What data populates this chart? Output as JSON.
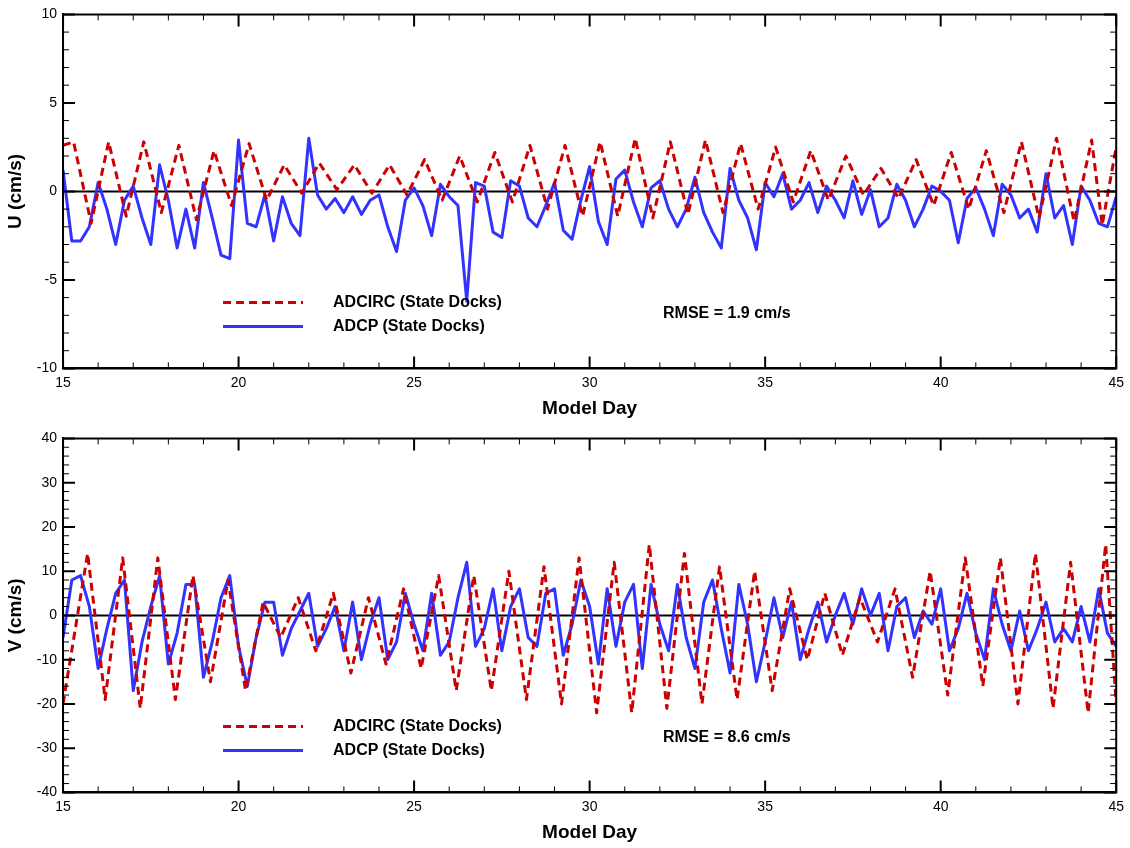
{
  "chart_data": [
    {
      "type": "line",
      "xlabel": "Model Day",
      "ylabel": "U (cm/s)",
      "xlim": [
        15,
        45
      ],
      "ylim": [
        -10,
        10
      ],
      "xticks": [
        15,
        20,
        25,
        30,
        35,
        40,
        45
      ],
      "yticks": [
        -10,
        -5,
        0,
        5,
        10
      ],
      "grid": false,
      "legend": "bottom left",
      "marker": "none",
      "ref_lines": [
        {
          "axis": "y",
          "value": 0,
          "color": "#000000"
        }
      ],
      "annotations": [
        {
          "text": "RMSE = 1.9 cm/s"
        }
      ],
      "series": [
        {
          "name": "ADCIRC (State Docks)",
          "color": "#cc0000",
          "line_style": "dashed",
          "x": [
            15,
            15.3,
            15.8,
            16.3,
            16.8,
            17.3,
            17.8,
            18.3,
            18.8,
            19.3,
            19.8,
            20.3,
            20.8,
            21.3,
            21.8,
            22.3,
            22.8,
            23.3,
            23.8,
            24.3,
            24.8,
            25.3,
            25.8,
            26.3,
            26.8,
            27.3,
            27.8,
            28.3,
            28.8,
            29.3,
            29.8,
            30.3,
            30.8,
            31.3,
            31.8,
            32.3,
            32.8,
            33.3,
            33.8,
            34.3,
            34.8,
            35.3,
            35.8,
            36.3,
            36.8,
            37.3,
            37.8,
            38.3,
            38.8,
            39.3,
            39.8,
            40.3,
            40.8,
            41.3,
            41.8,
            42.3,
            42.8,
            43.3,
            43.8,
            44.3,
            44.6,
            45
          ],
          "values": [
            2.6,
            2.8,
            -1.8,
            2.8,
            -1.4,
            2.8,
            -1.2,
            2.6,
            -1.6,
            2.3,
            -0.8,
            2.7,
            -0.5,
            1.5,
            -0.1,
            1.6,
            0.1,
            1.5,
            -0.1,
            1.5,
            -0.2,
            1.8,
            -0.5,
            2.0,
            -0.6,
            2.2,
            -0.6,
            2.6,
            -1.0,
            2.6,
            -1.4,
            2.8,
            -1.4,
            3.0,
            -1.5,
            2.8,
            -1.3,
            2.9,
            -1.2,
            2.7,
            -1.0,
            2.5,
            -0.6,
            2.3,
            -0.5,
            2.0,
            -0.2,
            1.3,
            -0.4,
            1.8,
            -0.8,
            2.2,
            -1.0,
            2.3,
            -1.2,
            2.8,
            -1.5,
            3.0,
            -1.7,
            2.9,
            -1.9,
            2.5
          ]
        },
        {
          "name": "ADCP (State Docks)",
          "color": "#3333ff",
          "line_style": "solid",
          "x": [
            15,
            15.25,
            15.5,
            15.75,
            16,
            16.25,
            16.5,
            16.75,
            17,
            17.25,
            17.5,
            17.75,
            18,
            18.25,
            18.5,
            18.75,
            19,
            19.25,
            19.5,
            19.75,
            20,
            20.25,
            20.5,
            20.75,
            21,
            21.25,
            21.5,
            21.75,
            22,
            22.25,
            22.5,
            22.75,
            23,
            23.25,
            23.5,
            23.75,
            24,
            24.25,
            24.5,
            24.75,
            25,
            25.25,
            25.5,
            25.75,
            26,
            26.25,
            26.5,
            26.75,
            27,
            27.25,
            27.5,
            27.75,
            28,
            28.25,
            28.5,
            28.75,
            29,
            29.25,
            29.5,
            29.75,
            30,
            30.25,
            30.5,
            30.75,
            31,
            31.25,
            31.5,
            31.75,
            32,
            32.25,
            32.5,
            32.75,
            33,
            33.25,
            33.5,
            33.75,
            34,
            34.25,
            34.5,
            34.75,
            35,
            35.25,
            35.5,
            35.75,
            36,
            36.25,
            36.5,
            36.75,
            37,
            37.25,
            37.5,
            37.75,
            38,
            38.25,
            38.5,
            38.75,
            39,
            39.25,
            39.5,
            39.75,
            40,
            40.25,
            40.5,
            40.75,
            41,
            41.25,
            41.5,
            41.75,
            42,
            42.25,
            42.5,
            42.75,
            43,
            43.25,
            43.5,
            43.75,
            44,
            44.25,
            44.5,
            44.75,
            45
          ],
          "values": [
            1.2,
            -2.8,
            -2.8,
            -2.0,
            0.5,
            -1.0,
            -3.0,
            -0.5,
            0.3,
            -1.5,
            -3.0,
            1.5,
            -0.5,
            -3.2,
            -1.0,
            -3.2,
            0.5,
            -1.5,
            -3.6,
            -3.8,
            2.9,
            -1.8,
            -2.0,
            -0.2,
            -2.8,
            -0.3,
            -1.8,
            -2.5,
            3.0,
            -0.2,
            -1.0,
            -0.4,
            -1.2,
            -0.3,
            -1.3,
            -0.5,
            -0.2,
            -2.0,
            -3.4,
            -0.5,
            0.2,
            -0.8,
            -2.5,
            0.4,
            -0.3,
            -0.8,
            -6.2,
            0.5,
            0.3,
            -2.3,
            -2.6,
            0.6,
            0.3,
            -1.5,
            -2.0,
            -0.8,
            0.5,
            -2.2,
            -2.7,
            -0.5,
            1.4,
            -1.7,
            -3.0,
            0.7,
            1.2,
            -0.6,
            -2.0,
            0.2,
            0.6,
            -1.0,
            -2.0,
            -1.0,
            0.8,
            -1.2,
            -2.3,
            -3.2,
            1.3,
            -0.5,
            -1.5,
            -3.3,
            0.5,
            -0.3,
            1.0,
            -1.0,
            -0.5,
            0.5,
            -1.2,
            0.3,
            -0.5,
            -1.5,
            0.6,
            -1.3,
            0.1,
            -2.0,
            -1.5,
            0.4,
            -0.5,
            -2.0,
            -1.0,
            0.3,
            0.0,
            -0.5,
            -2.9,
            -0.4,
            0.2,
            -1.0,
            -2.5,
            0.4,
            -0.2,
            -1.5,
            -1.0,
            -2.3,
            1.0,
            -1.5,
            -0.8,
            -3.0,
            0.3,
            -0.5,
            -1.8,
            -2.0,
            -0.3
          ]
        }
      ]
    },
    {
      "type": "line",
      "xlabel": "Model Day",
      "ylabel": "V (cm/s)",
      "xlim": [
        15,
        45
      ],
      "ylim": [
        -40,
        40
      ],
      "xticks": [
        15,
        20,
        25,
        30,
        35,
        40,
        45
      ],
      "yticks": [
        -40,
        -30,
        -20,
        -10,
        0,
        10,
        20,
        30,
        40
      ],
      "grid": false,
      "legend": "bottom left",
      "marker": "none",
      "ref_lines": [
        {
          "axis": "y",
          "value": 0,
          "color": "#000000"
        }
      ],
      "annotations": [
        {
          "text": "RMSE = 8.6 cm/s"
        }
      ],
      "series": [
        {
          "name": "ADCIRC (State Docks)",
          "color": "#cc0000",
          "line_style": "dashed",
          "x": [
            15,
            15.7,
            16.2,
            16.7,
            17.2,
            17.7,
            18.2,
            18.7,
            19.2,
            19.7,
            20.2,
            20.7,
            21.2,
            21.7,
            22.2,
            22.7,
            23.2,
            23.7,
            24.2,
            24.7,
            25.2,
            25.7,
            26.2,
            26.7,
            27.2,
            27.7,
            28.2,
            28.7,
            29.2,
            29.7,
            30.2,
            30.7,
            31.2,
            31.7,
            32.2,
            32.7,
            33.2,
            33.7,
            34.2,
            34.7,
            35.2,
            35.7,
            36.2,
            36.7,
            37.2,
            37.7,
            38.2,
            38.7,
            39.2,
            39.7,
            40.2,
            40.7,
            41.2,
            41.7,
            42.2,
            42.7,
            43.2,
            43.7,
            44.2,
            44.7,
            45
          ],
          "values": [
            -20,
            14,
            -19,
            13,
            -21,
            13,
            -19,
            9,
            -15,
            8,
            -17,
            3,
            -5,
            4,
            -8,
            5,
            -13,
            4,
            -11,
            6,
            -12,
            9,
            -17,
            9,
            -17,
            10,
            -19,
            11,
            -20,
            13,
            -22,
            12,
            -22,
            16,
            -21,
            14,
            -20,
            11,
            -19,
            10,
            -17,
            6,
            -10,
            5,
            -9,
            4,
            -6,
            6,
            -14,
            10,
            -18,
            13,
            -16,
            13,
            -20,
            14,
            -21,
            12,
            -22,
            16,
            -20
          ]
        },
        {
          "name": "ADCP (State Docks)",
          "color": "#3333ff",
          "line_style": "solid",
          "x": [
            15,
            15.25,
            15.5,
            15.75,
            16,
            16.25,
            16.5,
            16.75,
            17,
            17.25,
            17.5,
            17.75,
            18,
            18.25,
            18.5,
            18.75,
            19,
            19.25,
            19.5,
            19.75,
            20,
            20.25,
            20.5,
            20.75,
            21,
            21.25,
            21.5,
            21.75,
            22,
            22.25,
            22.5,
            22.75,
            23,
            23.25,
            23.5,
            23.75,
            24,
            24.25,
            24.5,
            24.75,
            25,
            25.25,
            25.5,
            25.75,
            26,
            26.25,
            26.5,
            26.75,
            27,
            27.25,
            27.5,
            27.75,
            28,
            28.25,
            28.5,
            28.75,
            29,
            29.25,
            29.5,
            29.75,
            30,
            30.25,
            30.5,
            30.75,
            31,
            31.25,
            31.5,
            31.75,
            32,
            32.25,
            32.5,
            32.75,
            33,
            33.25,
            33.5,
            33.75,
            34,
            34.25,
            34.5,
            34.75,
            35,
            35.25,
            35.5,
            35.75,
            36,
            36.25,
            36.5,
            36.75,
            37,
            37.25,
            37.5,
            37.75,
            38,
            38.25,
            38.5,
            38.75,
            39,
            39.25,
            39.5,
            39.75,
            40,
            40.25,
            40.5,
            40.75,
            41,
            41.25,
            41.5,
            41.75,
            42,
            42.25,
            42.5,
            42.75,
            43,
            43.25,
            43.5,
            43.75,
            44,
            44.25,
            44.5,
            44.75,
            45
          ],
          "values": [
            -5,
            8,
            9,
            2,
            -12,
            -3,
            5,
            8,
            -17,
            -6,
            2,
            9,
            -11,
            -4,
            7,
            7,
            -14,
            -6,
            4,
            9,
            -7,
            -16,
            -5,
            3,
            3,
            -9,
            -3,
            1,
            5,
            -7,
            -3,
            2,
            -8,
            3,
            -10,
            -2,
            4,
            -10,
            -6,
            5,
            -2,
            -8,
            5,
            -9,
            -6,
            4,
            12,
            -7,
            -3,
            6,
            -8,
            2,
            6,
            -5,
            -7,
            5,
            6,
            -9,
            -2,
            8,
            2,
            -11,
            6,
            -7,
            3,
            7,
            -12,
            7,
            -2,
            -8,
            7,
            -5,
            -12,
            3,
            8,
            -3,
            -13,
            7,
            -2,
            -15,
            -6,
            4,
            -5,
            3,
            -10,
            -3,
            3,
            -6,
            0,
            5,
            -2,
            6,
            0,
            5,
            -8,
            2,
            4,
            -5,
            1,
            -2,
            6,
            -8,
            -3,
            5,
            -4,
            -10,
            6,
            -2,
            -8,
            1,
            -8,
            -3,
            3,
            -6,
            -3,
            -6,
            2,
            -6,
            6,
            -4,
            -7
          ]
        }
      ]
    }
  ]
}
